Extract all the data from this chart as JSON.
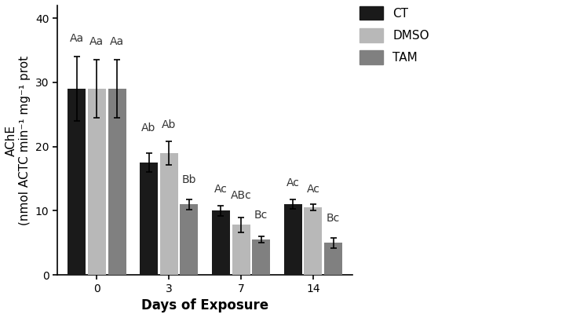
{
  "days": [
    0,
    3,
    7,
    14
  ],
  "ct_values": [
    29.0,
    17.5,
    10.0,
    11.0
  ],
  "dmso_values": [
    29.0,
    19.0,
    7.8,
    10.5
  ],
  "tam_values": [
    29.0,
    11.0,
    5.5,
    5.0
  ],
  "ct_err": [
    5.0,
    1.5,
    0.8,
    0.7
  ],
  "dmso_err": [
    4.5,
    1.8,
    1.2,
    0.5
  ],
  "tam_err": [
    4.5,
    0.8,
    0.5,
    0.8
  ],
  "ct_color": "#1a1a1a",
  "dmso_color": "#b8b8b8",
  "tam_color": "#808080",
  "bar_width": 0.28,
  "ylabel_top": "AChE",
  "ylabel_bot": "(nmol ACTC min⁻¹ mg⁻¹ prot",
  "xlabel": "Days of Exposure",
  "ylim": [
    0,
    42
  ],
  "yticks": [
    0,
    10,
    20,
    30,
    40
  ],
  "legend_labels": [
    "CT",
    "DMSO",
    "TAM"
  ],
  "annotations": {
    "day0": [
      "Aa",
      "Aa",
      "Aa"
    ],
    "day3": [
      "Ab",
      "Ab",
      "Bb"
    ],
    "day7": [
      "Ac",
      "ABc",
      "Bc"
    ],
    "day14": [
      "Ac",
      "Ac",
      "Bc"
    ]
  },
  "background_color": "#ffffff",
  "fontsize_ticks": 10,
  "fontsize_labels": 11,
  "fontsize_legend": 11,
  "fontsize_annot": 10
}
